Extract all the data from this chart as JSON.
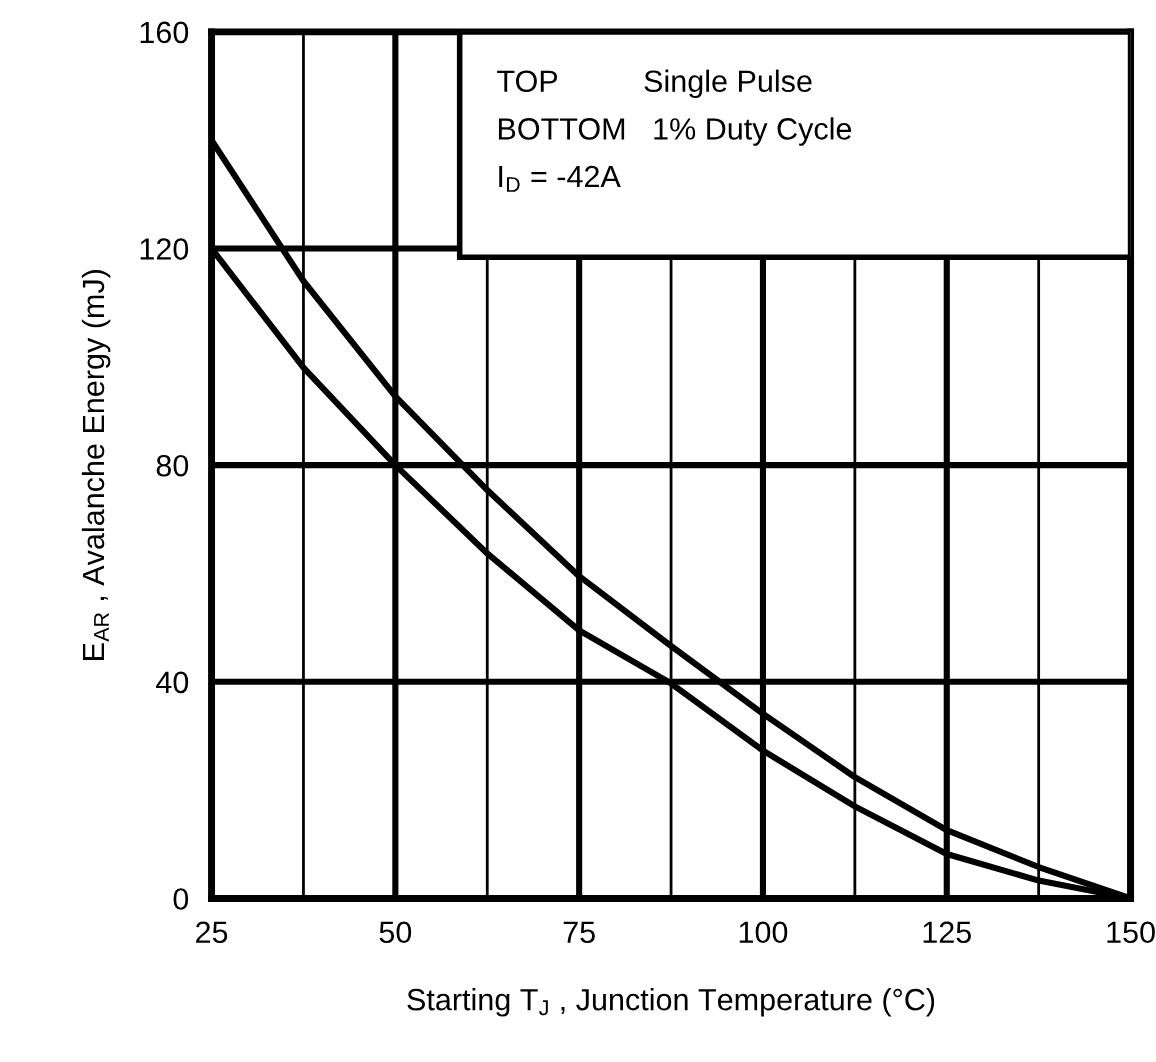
{
  "chart_data": {
    "type": "line",
    "xlabel": "Starting T$_{J}$ , Junction Temperature (°C)",
    "ylabel": "E$_{AR}$ , Avalanche Energy (mJ)",
    "annotations": [
      "TOP          Single Pulse",
      "BOTTOM   1% Duty Cycle",
      "I$_{D}$ = -42A"
    ],
    "x": [
      25,
      37.5,
      50,
      62.5,
      75,
      87.5,
      100,
      112.5,
      125,
      137.5,
      150
    ],
    "series": [
      {
        "color": "#000000",
        "values": [
          140,
          114,
          92.7,
          75.4,
          59.5,
          46.6,
          34.1,
          22.4,
          12.6,
          5.8,
          0
        ]
      },
      {
        "color": "#000000",
        "values": [
          120,
          98,
          80,
          63.7,
          49.5,
          39.7,
          27.3,
          17,
          8.2,
          3.3,
          0
        ]
      }
    ],
    "xlim": [
      25,
      150
    ],
    "ylim": [
      0,
      160
    ],
    "xticks": [
      25,
      {
        "value": 37.5,
        "label": null
      },
      50,
      {
        "value": 62.5,
        "label": null
      },
      75,
      {
        "value": 87.5,
        "label": null
      },
      100,
      {
        "value": 112.5,
        "label": null
      },
      125,
      {
        "value": 137.5,
        "label": null
      },
      150
    ],
    "yticks": [
      0,
      40,
      80,
      120,
      160
    ],
    "grid": true,
    "marker": "none",
    "line_style": "solid",
    "legend": false
  }
}
